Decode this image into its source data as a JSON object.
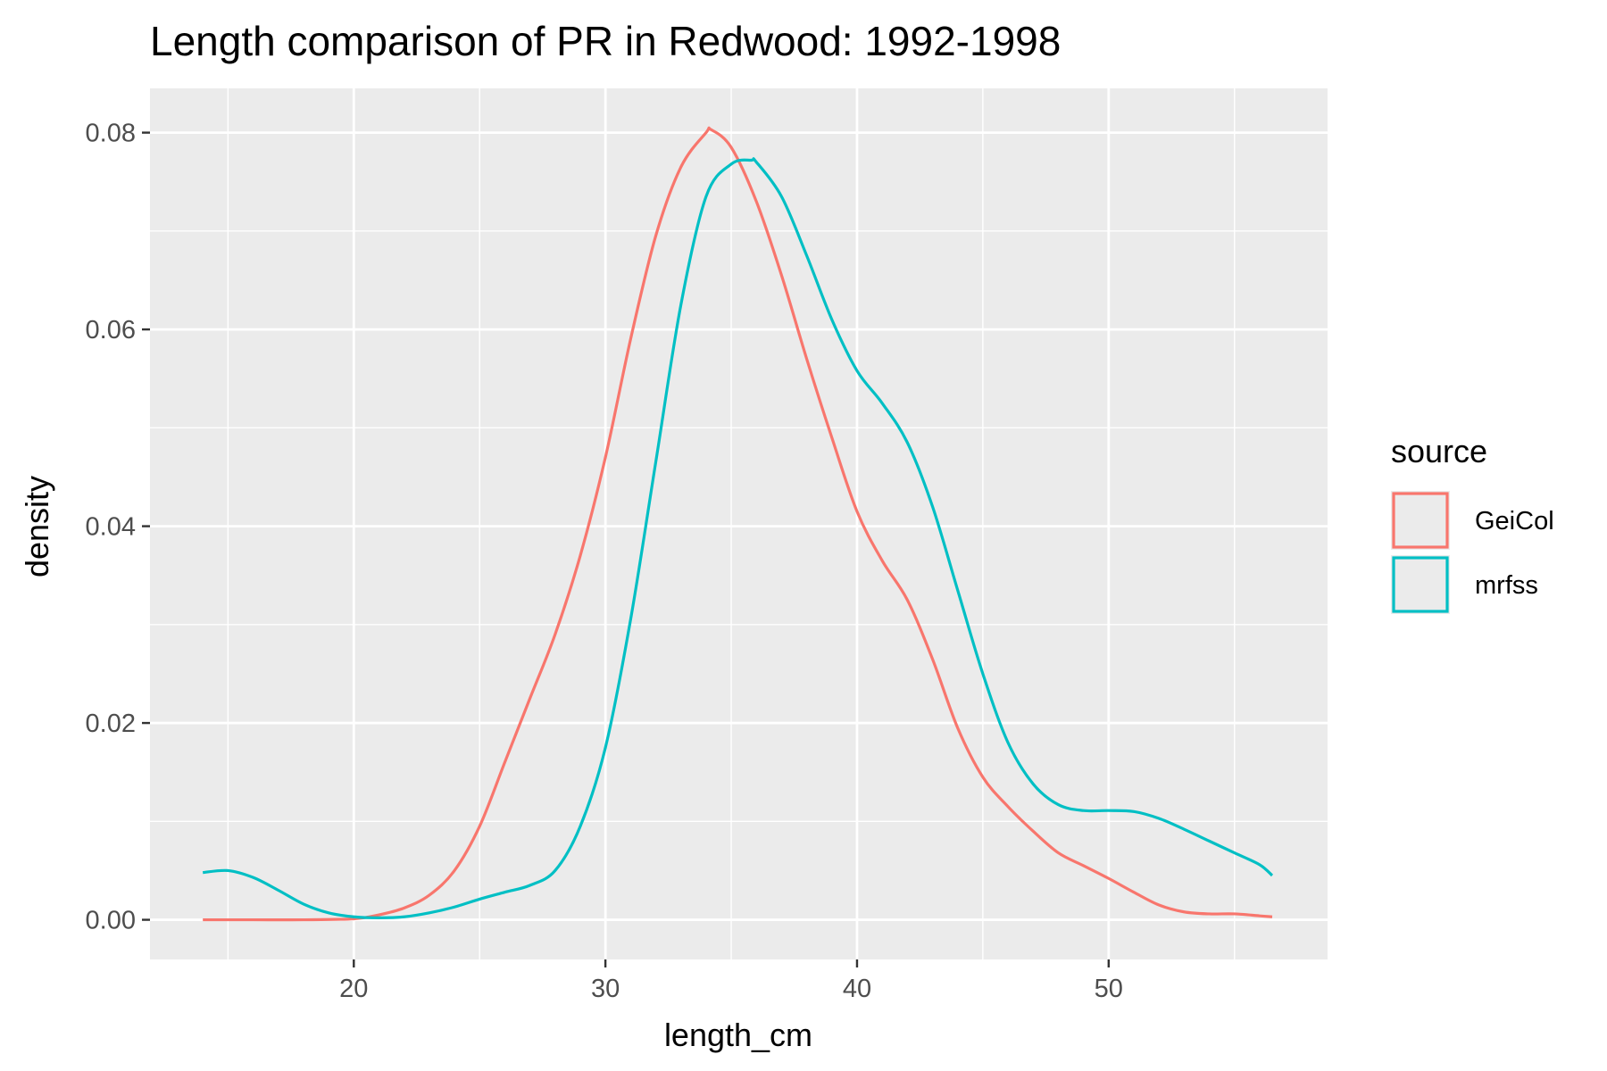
{
  "chart_data": {
    "type": "line",
    "title": "Length comparison of PR in Redwood: 1992-1998",
    "xlabel": "length_cm",
    "ylabel": "density",
    "xlim": [
      11.9,
      58.7
    ],
    "ylim": [
      -0.00403,
      0.0845
    ],
    "x_ticks": [
      20,
      30,
      40,
      50
    ],
    "x_tick_labels": [
      "20",
      "30",
      "40",
      "50"
    ],
    "y_ticks": [
      0.0,
      0.02,
      0.04,
      0.06,
      0.08
    ],
    "y_tick_labels": [
      "0.00",
      "0.02",
      "0.04",
      "0.06",
      "0.08"
    ],
    "grid": true,
    "legend": {
      "title": "source",
      "placement": "right",
      "entries": [
        "GeiCol",
        "mrfss"
      ]
    },
    "colors": {
      "panel_bg": "#ebebeb",
      "grid": "#ffffff",
      "GeiCol": "#f8766d",
      "mrfss": "#00bfc4"
    },
    "series": [
      {
        "name": "GeiCol",
        "color": "#f8766d",
        "x": [
          14,
          16,
          18,
          20,
          21,
          22,
          23,
          24,
          25,
          26,
          27,
          28,
          29,
          30,
          31,
          32,
          33,
          34,
          34.2,
          35,
          36,
          37,
          38,
          39,
          40,
          41,
          42,
          43,
          44,
          45,
          46,
          47,
          48,
          49,
          50,
          51,
          52,
          53,
          54,
          55,
          56,
          56.5
        ],
        "y": [
          0.0,
          0.0,
          0.0,
          0.0001,
          0.0005,
          0.0012,
          0.0025,
          0.005,
          0.0095,
          0.016,
          0.0225,
          0.029,
          0.037,
          0.047,
          0.059,
          0.0695,
          0.0765,
          0.08,
          0.0803,
          0.0785,
          0.073,
          0.0655,
          0.057,
          0.049,
          0.0415,
          0.0365,
          0.0325,
          0.0265,
          0.0195,
          0.0145,
          0.0115,
          0.009,
          0.0068,
          0.0055,
          0.0042,
          0.0028,
          0.0015,
          0.0008,
          0.0006,
          0.0006,
          0.0004,
          0.0003
        ]
      },
      {
        "name": "mrfss",
        "color": "#00bfc4",
        "x": [
          14,
          15,
          16,
          17,
          18,
          19,
          20,
          21,
          22,
          23,
          24,
          25,
          26,
          27,
          28,
          29,
          30,
          31,
          32,
          33,
          34,
          35,
          35.8,
          36,
          37,
          38,
          39,
          40,
          41,
          42,
          43,
          44,
          45,
          46,
          47,
          48,
          49,
          50,
          51,
          52,
          53,
          54,
          55,
          56,
          56.5
        ],
        "y": [
          0.0048,
          0.005,
          0.0043,
          0.003,
          0.0016,
          0.0007,
          0.0003,
          0.0002,
          0.0003,
          0.0007,
          0.0013,
          0.0021,
          0.0028,
          0.0035,
          0.005,
          0.0095,
          0.0175,
          0.0305,
          0.0465,
          0.0625,
          0.0735,
          0.0768,
          0.0772,
          0.077,
          0.0735,
          0.0675,
          0.061,
          0.0558,
          0.0525,
          0.0485,
          0.042,
          0.0335,
          0.025,
          0.018,
          0.0138,
          0.0117,
          0.0111,
          0.0111,
          0.011,
          0.0103,
          0.0092,
          0.008,
          0.0068,
          0.0056,
          0.0045
        ]
      }
    ]
  }
}
